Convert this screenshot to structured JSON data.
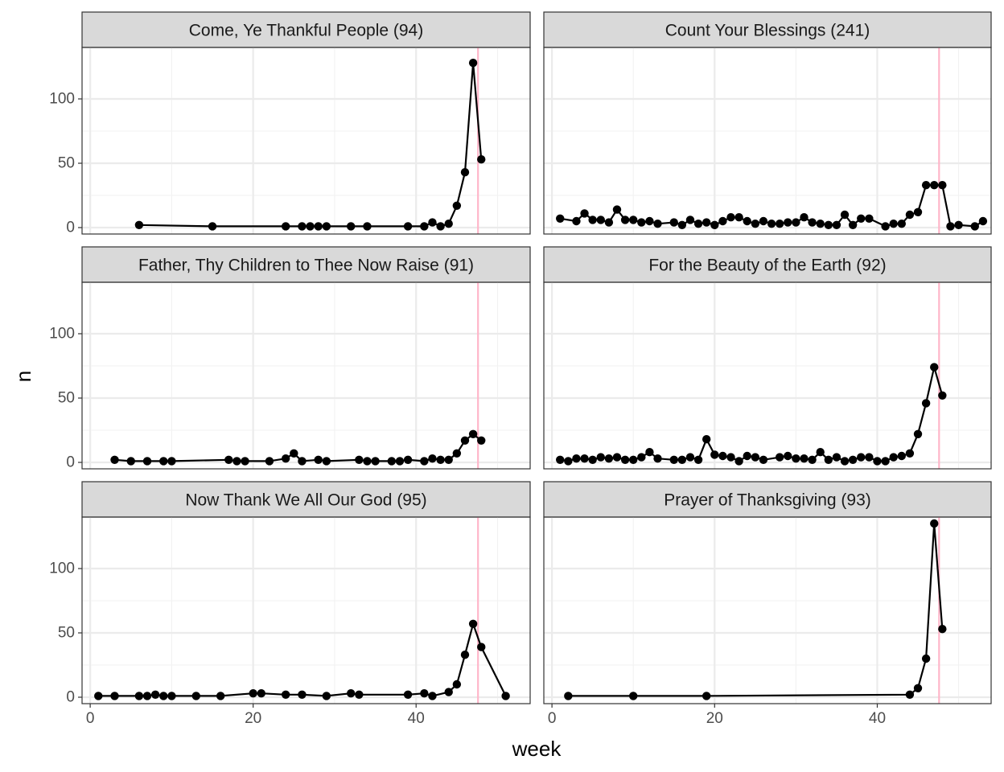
{
  "chart_data": {
    "type": "line",
    "xlabel": "week",
    "ylabel": "n",
    "xlim": [
      -1,
      54
    ],
    "ylim": [
      -5,
      140
    ],
    "x_ticks": [
      0,
      20,
      40
    ],
    "y_ticks": [
      0,
      50,
      100
    ],
    "reference_line": {
      "x": 47.6,
      "color": "#ffb6c9"
    },
    "grid": true,
    "facet_layout": {
      "rows": 3,
      "cols": 2
    },
    "panels": [
      {
        "title": "Come, Ye Thankful People (94)",
        "points": [
          [
            6,
            2
          ],
          [
            15,
            1
          ],
          [
            24,
            1
          ],
          [
            26,
            1
          ],
          [
            27,
            1
          ],
          [
            28,
            1
          ],
          [
            29,
            1
          ],
          [
            32,
            1
          ],
          [
            34,
            1
          ],
          [
            39,
            1
          ],
          [
            41,
            1
          ],
          [
            42,
            4
          ],
          [
            43,
            1
          ],
          [
            44,
            3
          ],
          [
            45,
            17
          ],
          [
            46,
            43
          ],
          [
            47,
            128
          ],
          [
            48,
            53
          ]
        ]
      },
      {
        "title": "Count Your Blessings (241)",
        "points": [
          [
            1,
            7
          ],
          [
            3,
            5
          ],
          [
            4,
            11
          ],
          [
            5,
            6
          ],
          [
            6,
            6
          ],
          [
            7,
            4
          ],
          [
            8,
            14
          ],
          [
            9,
            6
          ],
          [
            10,
            6
          ],
          [
            11,
            4
          ],
          [
            12,
            5
          ],
          [
            13,
            3
          ],
          [
            15,
            4
          ],
          [
            16,
            2
          ],
          [
            17,
            6
          ],
          [
            18,
            3
          ],
          [
            19,
            4
          ],
          [
            20,
            2
          ],
          [
            21,
            5
          ],
          [
            22,
            8
          ],
          [
            23,
            8
          ],
          [
            24,
            5
          ],
          [
            25,
            3
          ],
          [
            26,
            5
          ],
          [
            27,
            3
          ],
          [
            28,
            3
          ],
          [
            29,
            4
          ],
          [
            30,
            4
          ],
          [
            31,
            8
          ],
          [
            32,
            4
          ],
          [
            33,
            3
          ],
          [
            34,
            2
          ],
          [
            35,
            2
          ],
          [
            36,
            10
          ],
          [
            37,
            2
          ],
          [
            38,
            7
          ],
          [
            39,
            7
          ],
          [
            41,
            1
          ],
          [
            42,
            3
          ],
          [
            43,
            3
          ],
          [
            44,
            10
          ],
          [
            45,
            12
          ],
          [
            46,
            33
          ],
          [
            47,
            33
          ],
          [
            48,
            33
          ],
          [
            49,
            1
          ],
          [
            50,
            2
          ],
          [
            52,
            1
          ],
          [
            53,
            5
          ]
        ]
      },
      {
        "title": "Father, Thy Children to Thee Now Raise (91)",
        "points": [
          [
            3,
            2
          ],
          [
            5,
            1
          ],
          [
            7,
            1
          ],
          [
            9,
            1
          ],
          [
            10,
            1
          ],
          [
            17,
            2
          ],
          [
            18,
            1
          ],
          [
            19,
            1
          ],
          [
            22,
            1
          ],
          [
            24,
            3
          ],
          [
            25,
            7
          ],
          [
            26,
            1
          ],
          [
            28,
            2
          ],
          [
            29,
            1
          ],
          [
            33,
            2
          ],
          [
            34,
            1
          ],
          [
            35,
            1
          ],
          [
            37,
            1
          ],
          [
            38,
            1
          ],
          [
            39,
            2
          ],
          [
            41,
            1
          ],
          [
            42,
            3
          ],
          [
            43,
            2
          ],
          [
            44,
            2
          ],
          [
            45,
            7
          ],
          [
            46,
            17
          ],
          [
            47,
            22
          ],
          [
            48,
            17
          ]
        ]
      },
      {
        "title": "For the Beauty of the Earth (92)",
        "points": [
          [
            1,
            2
          ],
          [
            2,
            1
          ],
          [
            3,
            3
          ],
          [
            4,
            3
          ],
          [
            5,
            2
          ],
          [
            6,
            4
          ],
          [
            7,
            3
          ],
          [
            8,
            4
          ],
          [
            9,
            2
          ],
          [
            10,
            2
          ],
          [
            11,
            4
          ],
          [
            12,
            8
          ],
          [
            13,
            3
          ],
          [
            15,
            2
          ],
          [
            16,
            2
          ],
          [
            17,
            4
          ],
          [
            18,
            2
          ],
          [
            19,
            18
          ],
          [
            20,
            6
          ],
          [
            21,
            5
          ],
          [
            22,
            4
          ],
          [
            23,
            1
          ],
          [
            24,
            5
          ],
          [
            25,
            4
          ],
          [
            26,
            2
          ],
          [
            28,
            4
          ],
          [
            29,
            5
          ],
          [
            30,
            3
          ],
          [
            31,
            3
          ],
          [
            32,
            2
          ],
          [
            33,
            8
          ],
          [
            34,
            2
          ],
          [
            35,
            4
          ],
          [
            36,
            1
          ],
          [
            37,
            2
          ],
          [
            38,
            4
          ],
          [
            39,
            4
          ],
          [
            40,
            1
          ],
          [
            41,
            1
          ],
          [
            42,
            4
          ],
          [
            43,
            5
          ],
          [
            44,
            7
          ],
          [
            45,
            22
          ],
          [
            46,
            46
          ],
          [
            47,
            74
          ],
          [
            48,
            52
          ]
        ]
      },
      {
        "title": "Now Thank We All Our God (95)",
        "points": [
          [
            1,
            1
          ],
          [
            3,
            1
          ],
          [
            6,
            1
          ],
          [
            7,
            1
          ],
          [
            8,
            2
          ],
          [
            9,
            1
          ],
          [
            10,
            1
          ],
          [
            13,
            1
          ],
          [
            16,
            1
          ],
          [
            20,
            3
          ],
          [
            21,
            3
          ],
          [
            24,
            2
          ],
          [
            26,
            2
          ],
          [
            29,
            1
          ],
          [
            32,
            3
          ],
          [
            33,
            2
          ],
          [
            39,
            2
          ],
          [
            41,
            3
          ],
          [
            42,
            1
          ],
          [
            44,
            4
          ],
          [
            45,
            10
          ],
          [
            46,
            33
          ],
          [
            47,
            57
          ],
          [
            48,
            39
          ],
          [
            51,
            1
          ]
        ]
      },
      {
        "title": "Prayer of Thanksgiving (93)",
        "points": [
          [
            2,
            1
          ],
          [
            10,
            1
          ],
          [
            19,
            1
          ],
          [
            44,
            2
          ],
          [
            45,
            7
          ],
          [
            46,
            30
          ],
          [
            47,
            135
          ],
          [
            48,
            53
          ]
        ]
      }
    ]
  }
}
